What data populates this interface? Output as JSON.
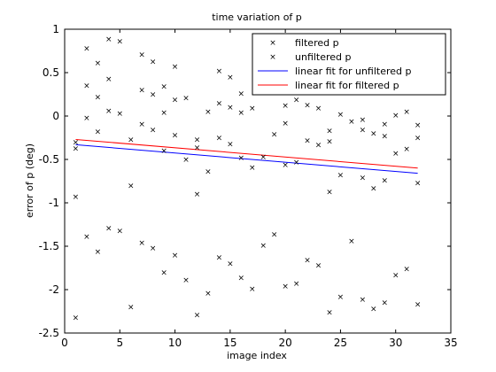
{
  "chart_data": {
    "type": "scatter",
    "title": "time variation of p",
    "xlabel": "image index",
    "ylabel": "error of p (deg)",
    "xlim": [
      0,
      35
    ],
    "ylim": [
      -2.5,
      1
    ],
    "xticks": [
      0,
      5,
      10,
      15,
      20,
      25,
      30,
      35
    ],
    "yticks": [
      -2.5,
      -2,
      -1.5,
      -1,
      -0.5,
      0,
      0.5,
      1
    ],
    "xtick_labels": [
      "0",
      "5",
      "10",
      "15",
      "20",
      "25",
      "30",
      "35"
    ],
    "ytick_labels": [
      "-2.5",
      "-2",
      "-1.5",
      "-1",
      "-0.5",
      "0",
      "0.5",
      "1"
    ],
    "grid": false,
    "legend_position": "top-right",
    "series": [
      {
        "name": "filtered p",
        "kind": "marker",
        "marker": "×",
        "color": "#ff0000",
        "points": [
          [
            1,
            -0.93
          ],
          [
            2,
            -0.02
          ],
          [
            3,
            -0.18
          ],
          [
            4,
            0.06
          ],
          [
            5,
            0.03
          ],
          [
            6,
            -0.8
          ],
          [
            7,
            -0.09
          ],
          [
            8,
            -0.16
          ],
          [
            9,
            -0.4
          ],
          [
            10,
            -0.22
          ],
          [
            11,
            -0.5
          ],
          [
            12,
            -0.9
          ],
          [
            13,
            -0.64
          ],
          [
            14,
            -0.25
          ],
          [
            15,
            -0.32
          ],
          [
            16,
            -0.48
          ],
          [
            17,
            -0.59
          ],
          [
            18,
            -0.47
          ],
          [
            19,
            -0.21
          ],
          [
            20,
            -0.56
          ],
          [
            21,
            -0.53
          ],
          [
            22,
            -0.28
          ],
          [
            23,
            -0.33
          ],
          [
            24,
            -0.87
          ],
          [
            25,
            -0.68
          ],
          [
            26,
            -0.06
          ],
          [
            27,
            -0.71
          ],
          [
            28,
            -0.83
          ],
          [
            29,
            -0.74
          ],
          [
            30,
            -0.43
          ],
          [
            31,
            -0.38
          ],
          [
            32,
            -0.77
          ]
        ]
      },
      {
        "name": "unfiltered p",
        "kind": "marker",
        "marker": "×",
        "color": "#0000ff",
        "points": [
          [
            1,
            -0.3
          ],
          [
            1,
            -0.37
          ],
          [
            1,
            -2.32
          ],
          [
            2,
            0.78
          ],
          [
            2,
            0.35
          ],
          [
            2,
            -1.39
          ],
          [
            3,
            0.61
          ],
          [
            3,
            0.22
          ],
          [
            3,
            -1.56
          ],
          [
            4,
            0.89
          ],
          [
            4,
            0.43
          ],
          [
            4,
            -1.29
          ],
          [
            5,
            0.86
          ],
          [
            5,
            -1.32
          ],
          [
            6,
            -0.27
          ],
          [
            6,
            -2.2
          ],
          [
            7,
            0.71
          ],
          [
            7,
            0.3
          ],
          [
            7,
            -1.46
          ],
          [
            8,
            0.63
          ],
          [
            8,
            0.25
          ],
          [
            8,
            -1.52
          ],
          [
            9,
            0.34
          ],
          [
            9,
            0.04
          ],
          [
            9,
            -1.8
          ],
          [
            10,
            0.57
          ],
          [
            10,
            0.19
          ],
          [
            10,
            -1.6
          ],
          [
            11,
            0.21
          ],
          [
            11,
            -1.89
          ],
          [
            12,
            -0.27
          ],
          [
            12,
            -0.36
          ],
          [
            12,
            -2.29
          ],
          [
            13,
            0.05
          ],
          [
            13,
            -2.04
          ],
          [
            14,
            0.52
          ],
          [
            14,
            0.15
          ],
          [
            14,
            -1.63
          ],
          [
            15,
            0.45
          ],
          [
            15,
            0.1
          ],
          [
            15,
            -1.7
          ],
          [
            16,
            0.26
          ],
          [
            16,
            0.04
          ],
          [
            16,
            -1.86
          ],
          [
            17,
            0.09
          ],
          [
            17,
            -1.99
          ],
          [
            18,
            -1.49
          ],
          [
            19,
            -1.36
          ],
          [
            20,
            0.12
          ],
          [
            20,
            -0.08
          ],
          [
            20,
            -1.96
          ],
          [
            21,
            0.19
          ],
          [
            21,
            -1.93
          ],
          [
            22,
            0.13
          ],
          [
            22,
            -1.66
          ],
          [
            23,
            0.09
          ],
          [
            23,
            -1.72
          ],
          [
            24,
            -0.17
          ],
          [
            24,
            -0.29
          ],
          [
            24,
            -2.26
          ],
          [
            25,
            0.02
          ],
          [
            25,
            -2.08
          ],
          [
            26,
            -1.44
          ],
          [
            27,
            -0.04
          ],
          [
            27,
            -0.16
          ],
          [
            27,
            -2.11
          ],
          [
            28,
            -0.2
          ],
          [
            28,
            -2.22
          ],
          [
            29,
            -0.09
          ],
          [
            29,
            -0.23
          ],
          [
            29,
            -2.15
          ],
          [
            30,
            0.01
          ],
          [
            30,
            -1.83
          ],
          [
            31,
            0.05
          ],
          [
            31,
            -1.76
          ],
          [
            32,
            -0.1
          ],
          [
            32,
            -0.25
          ],
          [
            32,
            -2.17
          ]
        ]
      },
      {
        "name": "linear fit for unfiltered p",
        "kind": "line",
        "color": "#0000ff",
        "x": [
          1,
          32
        ],
        "y": [
          -0.33,
          -0.66
        ]
      },
      {
        "name": "linear fit for filtered p",
        "kind": "line",
        "color": "#ff0000",
        "x": [
          1,
          32
        ],
        "y": [
          -0.27,
          -0.6
        ]
      }
    ]
  }
}
